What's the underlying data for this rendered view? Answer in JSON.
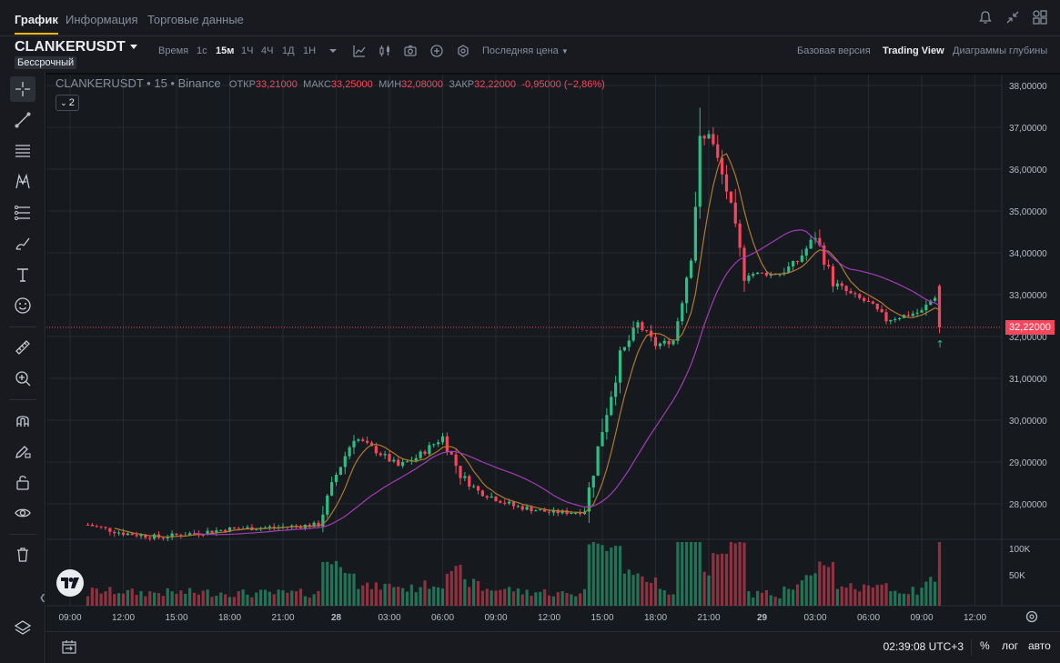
{
  "tabs": [
    "График",
    "Информация",
    "Торговые данные"
  ],
  "active_tab": 0,
  "toolbar": {
    "symbol": "CLANKERUSDT",
    "contract_type": "Бессрочный",
    "time_label": "Время",
    "timeframes": [
      "1с",
      "15м",
      "1Ч",
      "4Ч",
      "1Д",
      "1Н"
    ],
    "active_timeframe": "15м",
    "price_type": "Последняя цена",
    "views": [
      "Базовая версия",
      "Trading View",
      "Диаграммы глубины"
    ],
    "active_view": "Trading View"
  },
  "legend": {
    "title": "CLANKERUSDT • 15 • Binance",
    "open_label": "ОТКР",
    "open": "33,21000",
    "high_label": "МАКС",
    "high": "33,25000",
    "low_label": "МИН",
    "low": "32,08000",
    "close_label": "ЗАКР",
    "close": "32,22000",
    "change": "-0,95000 (−2,86%)",
    "indicators_count": "2"
  },
  "bottom": {
    "clock": "02:39:08 UTC+3",
    "percent": "%",
    "log": "лог",
    "auto": "авто"
  },
  "colors": {
    "up": "#2ebd85",
    "down": "#f6465d",
    "ma_fast": "#b0792f",
    "ma_slow": "#a43bb8",
    "background": "#161a1e",
    "grid": "#252930"
  },
  "chart_data": {
    "type": "candlestick",
    "interval": "15м",
    "last_price": "32,22000",
    "price_axis": [
      "38,00000",
      "37,00000",
      "36,00000",
      "35,00000",
      "34,00000",
      "33,00000",
      "32,00000",
      "31,00000",
      "30,00000",
      "29,00000",
      "28,00000"
    ],
    "price_range": [
      27.5,
      38.1
    ],
    "volume_axis": [
      "100K",
      "50K"
    ],
    "time_axis": [
      "09:00",
      "12:00",
      "15:00",
      "18:00",
      "21:00",
      "28",
      "03:00",
      "06:00",
      "09:00",
      "12:00",
      "15:00",
      "18:00",
      "21:00",
      "29",
      "03:00",
      "06:00",
      "09:00",
      "12:00"
    ],
    "time_axis_start_hour": 9,
    "last_candle_hour": 56.6,
    "key_closes": [
      [
        1,
        27.5
      ],
      [
        3,
        27.3
      ],
      [
        5,
        27.2
      ],
      [
        9,
        27.4
      ],
      [
        12,
        27.45
      ],
      [
        14,
        27.5
      ],
      [
        15,
        28.7
      ],
      [
        16,
        29.6
      ],
      [
        17.5,
        29.2
      ],
      [
        18.5,
        28.9
      ],
      [
        19.5,
        29.1
      ],
      [
        21,
        29.6
      ],
      [
        22,
        28.7
      ],
      [
        23,
        28.3
      ],
      [
        25,
        27.95
      ],
      [
        27,
        27.8
      ],
      [
        28.5,
        27.8
      ],
      [
        29,
        27.85
      ],
      [
        30,
        29.8
      ],
      [
        31,
        31.5
      ],
      [
        32,
        32.3
      ],
      [
        33,
        31.8
      ],
      [
        34,
        31.9
      ],
      [
        35,
        34.0
      ],
      [
        35.5,
        36.5
      ],
      [
        36,
        36.9
      ],
      [
        37,
        35.5
      ],
      [
        38,
        33.5
      ],
      [
        39,
        33.5
      ],
      [
        40,
        33.5
      ],
      [
        41,
        33.8
      ],
      [
        42,
        34.4
      ],
      [
        43,
        33.3
      ],
      [
        44,
        33.0
      ],
      [
        45,
        32.8
      ],
      [
        46,
        32.4
      ],
      [
        47,
        32.5
      ],
      [
        48,
        32.6
      ],
      [
        48.8,
        33.0
      ],
      [
        49,
        32.22
      ]
    ],
    "ma_fast_label": "MA",
    "ma_slow_label": "MA"
  }
}
